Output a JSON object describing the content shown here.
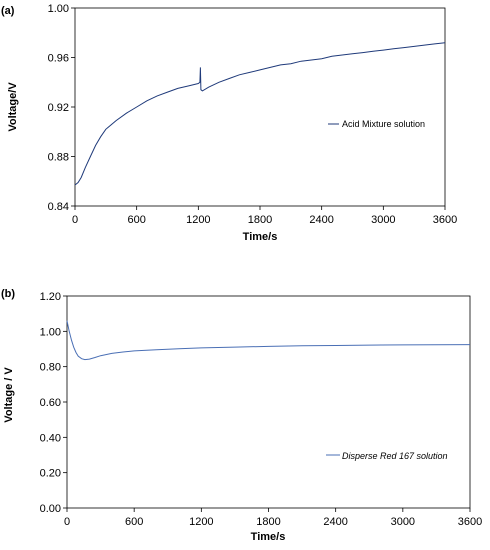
{
  "chart_data": [
    {
      "type": "line",
      "panel_label": "(a)",
      "xlabel": "Time/s",
      "ylabel": "Voltage/V",
      "xlim": [
        0,
        3600
      ],
      "ylim": [
        0.84,
        1.0
      ],
      "x_ticks": [
        "0",
        "600",
        "1200",
        "1800",
        "2400",
        "3000",
        "3600"
      ],
      "y_ticks": [
        "0.84",
        "0.88",
        "0.92",
        "0.96",
        "1.00"
      ],
      "grid": false,
      "legend_position": "center-right",
      "line_color": "#1f3a7a",
      "series": [
        {
          "name": "Acid Mixture solution",
          "x": [
            0,
            30,
            60,
            100,
            150,
            200,
            250,
            300,
            400,
            500,
            600,
            700,
            800,
            900,
            1000,
            1100,
            1200,
            1215,
            1220,
            1225,
            1240,
            1300,
            1400,
            1500,
            1600,
            1700,
            1800,
            1900,
            2000,
            2100,
            2200,
            2300,
            2400,
            2500,
            2600,
            2700,
            2800,
            2900,
            3000,
            3100,
            3200,
            3300,
            3400,
            3500,
            3600
          ],
          "values": [
            0.857,
            0.859,
            0.863,
            0.871,
            0.88,
            0.889,
            0.896,
            0.902,
            0.909,
            0.915,
            0.92,
            0.925,
            0.929,
            0.932,
            0.935,
            0.937,
            0.939,
            0.94,
            0.952,
            0.934,
            0.933,
            0.936,
            0.94,
            0.943,
            0.946,
            0.948,
            0.95,
            0.952,
            0.954,
            0.955,
            0.957,
            0.958,
            0.959,
            0.961,
            0.962,
            0.963,
            0.964,
            0.965,
            0.966,
            0.967,
            0.968,
            0.969,
            0.97,
            0.971,
            0.972
          ]
        }
      ]
    },
    {
      "type": "line",
      "panel_label": "(b)",
      "xlabel": "Time/s",
      "ylabel": "Voltage / V",
      "xlim": [
        0,
        3600
      ],
      "ylim": [
        0.0,
        1.2
      ],
      "x_ticks": [
        "0",
        "600",
        "1200",
        "1800",
        "2400",
        "3000",
        "3600"
      ],
      "y_ticks": [
        "0.00",
        "0.20",
        "0.40",
        "0.60",
        "0.80",
        "1.00",
        "1.20"
      ],
      "grid": false,
      "legend_position": "lower-right",
      "line_color": "#4a6fb5",
      "series": [
        {
          "name": "Disperse Red 167 solution",
          "x": [
            0,
            20,
            40,
            60,
            80,
            100,
            130,
            160,
            200,
            250,
            300,
            400,
            500,
            600,
            800,
            1000,
            1200,
            1500,
            1800,
            2100,
            2400,
            2700,
            3000,
            3300,
            3600
          ],
          "values": [
            1.06,
            1.0,
            0.95,
            0.91,
            0.88,
            0.86,
            0.845,
            0.84,
            0.843,
            0.852,
            0.862,
            0.875,
            0.883,
            0.889,
            0.896,
            0.901,
            0.906,
            0.911,
            0.915,
            0.918,
            0.92,
            0.922,
            0.923,
            0.924,
            0.925
          ]
        }
      ]
    }
  ]
}
